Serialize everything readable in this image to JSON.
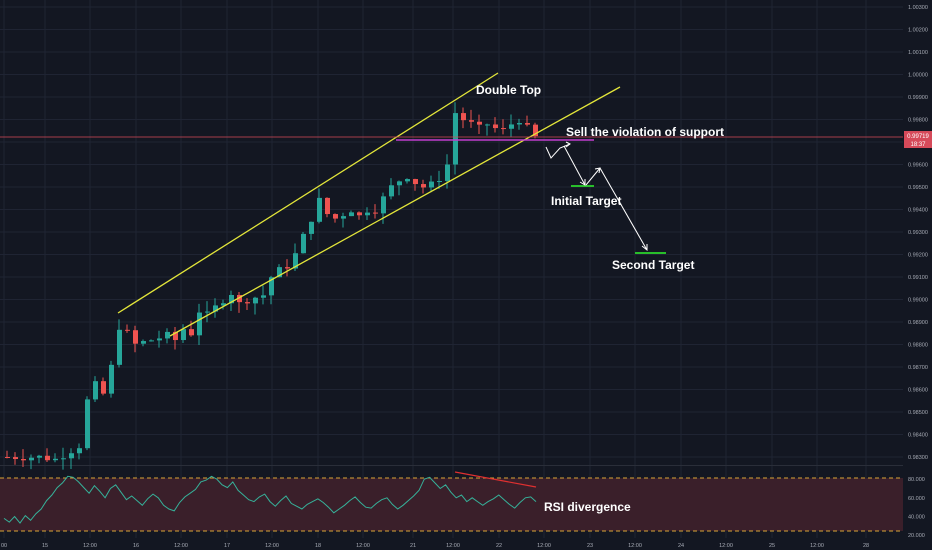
{
  "colors": {
    "background": "#131722",
    "grid": "#1f2433",
    "bull": "#26a69a",
    "bear": "#ef5350",
    "channel": "#e3e63a",
    "support": "#c13fd0",
    "price_line": "#d64a5a",
    "target": "#2bd62b",
    "arrow": "#ffffff",
    "rsi_line": "#36b29a",
    "rsi_band": "#3a1f2a",
    "rsi_dashed": "#d8a436",
    "divergence": "#e03030",
    "axis_text": "#a8acb6"
  },
  "chart_data": [
    {
      "type": "candlestick",
      "title": "",
      "ylim": [
        0.9825,
        1.0031
      ],
      "y_ticks": [
        "1.00300",
        "1.00200",
        "1.00100",
        "1.00000",
        "0.99900",
        "0.99800",
        "0.99700",
        "0.99600",
        "0.99500",
        "0.99400",
        "0.99300",
        "0.99200",
        "0.99100",
        "0.99000",
        "0.98900",
        "0.98800",
        "0.98700",
        "0.98600",
        "0.98500",
        "0.98400",
        "0.98300"
      ],
      "x_ticks": [
        "00",
        "15",
        "12:00",
        "16",
        "12:00",
        "17",
        "12:00",
        "18",
        "12:00",
        "21",
        "12:00",
        "22",
        "12:00",
        "23",
        "12:00",
        "24",
        "12:00",
        "25",
        "12:00",
        "28"
      ],
      "current_price": "0.99719",
      "countdown": "18:37",
      "price_path": [
        [
          0,
          0.983
        ],
        [
          4,
          0.983
        ],
        [
          6,
          0.9829
        ],
        [
          9,
          0.9835
        ],
        [
          10,
          0.9855
        ],
        [
          11,
          0.9862
        ],
        [
          12,
          0.9858
        ],
        [
          13,
          0.987
        ],
        [
          14,
          0.9888
        ],
        [
          15,
          0.9885
        ],
        [
          16,
          0.988
        ],
        [
          18,
          0.9882
        ],
        [
          20,
          0.9884
        ],
        [
          21,
          0.9882
        ],
        [
          22,
          0.9887
        ],
        [
          23,
          0.9885
        ],
        [
          24,
          0.9895
        ],
        [
          25,
          0.9893
        ],
        [
          27,
          0.99
        ],
        [
          28,
          0.9903
        ],
        [
          29,
          0.9898
        ],
        [
          30,
          0.99
        ],
        [
          32,
          0.9902
        ],
        [
          33,
          0.991
        ],
        [
          34,
          0.9913
        ],
        [
          35,
          0.9915
        ],
        [
          36,
          0.992
        ],
        [
          37,
          0.9928
        ],
        [
          38,
          0.9936
        ],
        [
          39,
          0.9944
        ],
        [
          40,
          0.9938
        ],
        [
          41,
          0.9936
        ],
        [
          42,
          0.9938
        ],
        [
          43,
          0.994
        ],
        [
          44,
          0.9937
        ],
        [
          45,
          0.994
        ],
        [
          46,
          0.994
        ],
        [
          47,
          0.9945
        ],
        [
          48,
          0.995
        ],
        [
          49,
          0.9953
        ],
        [
          50,
          0.9955
        ],
        [
          51,
          0.9952
        ],
        [
          52,
          0.995
        ],
        [
          53,
          0.9951
        ],
        [
          54,
          0.9954
        ],
        [
          55,
          0.996
        ],
        [
          56,
          0.9983
        ],
        [
          57,
          0.998
        ],
        [
          58,
          0.9978
        ],
        [
          59,
          0.9976
        ],
        [
          60,
          0.9978
        ],
        [
          61,
          0.9976
        ],
        [
          62,
          0.9975
        ],
        [
          63,
          0.9978
        ],
        [
          64,
          0.998
        ],
        [
          65,
          0.9976
        ],
        [
          66,
          0.9972
        ]
      ],
      "support_level": 0.99725,
      "channel_upper": [
        [
          14,
          0.9894
        ],
        [
          60,
          1.0005
        ]
      ],
      "channel_lower": [
        [
          20,
          0.9871
        ],
        [
          75,
          0.9987
        ]
      ],
      "targets": [
        {
          "label": "Initial Target",
          "price": 0.995
        },
        {
          "label": "Second Target",
          "price": 0.9921
        }
      ],
      "annotations": [
        "Double Top",
        "Sell the violation of support",
        "Initial Target",
        "Second Target"
      ]
    },
    {
      "type": "line",
      "title": "",
      "y_ticks": [
        "80.000",
        "60.000",
        "40.000",
        "20.000"
      ],
      "ylim": [
        17,
        93
      ],
      "bands": [
        80,
        20
      ],
      "values": [
        38,
        34,
        40,
        33,
        41,
        36,
        43,
        48,
        57,
        63,
        71,
        76,
        83,
        82,
        77,
        71,
        65,
        73,
        67,
        60,
        70,
        74,
        66,
        58,
        62,
        57,
        52,
        59,
        64,
        60,
        52,
        48,
        46,
        55,
        61,
        65,
        69,
        77,
        79,
        83,
        80,
        74,
        71,
        77,
        68,
        63,
        58,
        56,
        61,
        64,
        56,
        51,
        57,
        62,
        54,
        51,
        48,
        53,
        56,
        59,
        55,
        50,
        44,
        48,
        52,
        57,
        61,
        55,
        50,
        49,
        54,
        58,
        60,
        53,
        48,
        52,
        57,
        62,
        68,
        80,
        82,
        76,
        70,
        74,
        66,
        60,
        63,
        56,
        60,
        56,
        52,
        56,
        59,
        63,
        58,
        53,
        49,
        55,
        60,
        61,
        56
      ],
      "annotation": "RSI divergence"
    }
  ]
}
